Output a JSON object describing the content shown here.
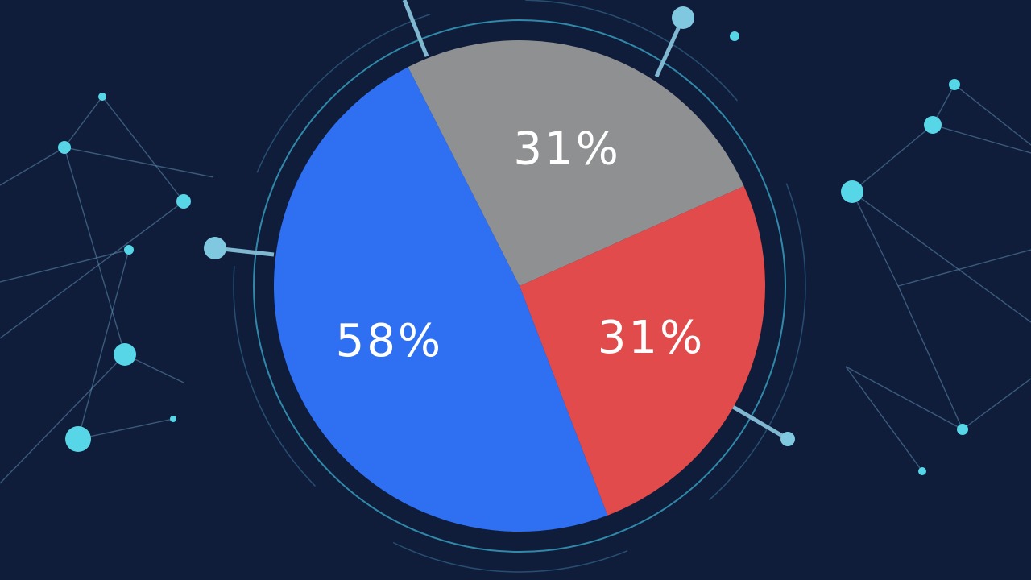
{
  "chart_data": {
    "type": "pie",
    "values": [
      31,
      31,
      58
    ],
    "value_labels": [
      "31%",
      "31%",
      "58%"
    ],
    "colors": [
      "#8f9092",
      "#e24b4b",
      "#2f70f2"
    ],
    "start_angle": -27
  }
}
